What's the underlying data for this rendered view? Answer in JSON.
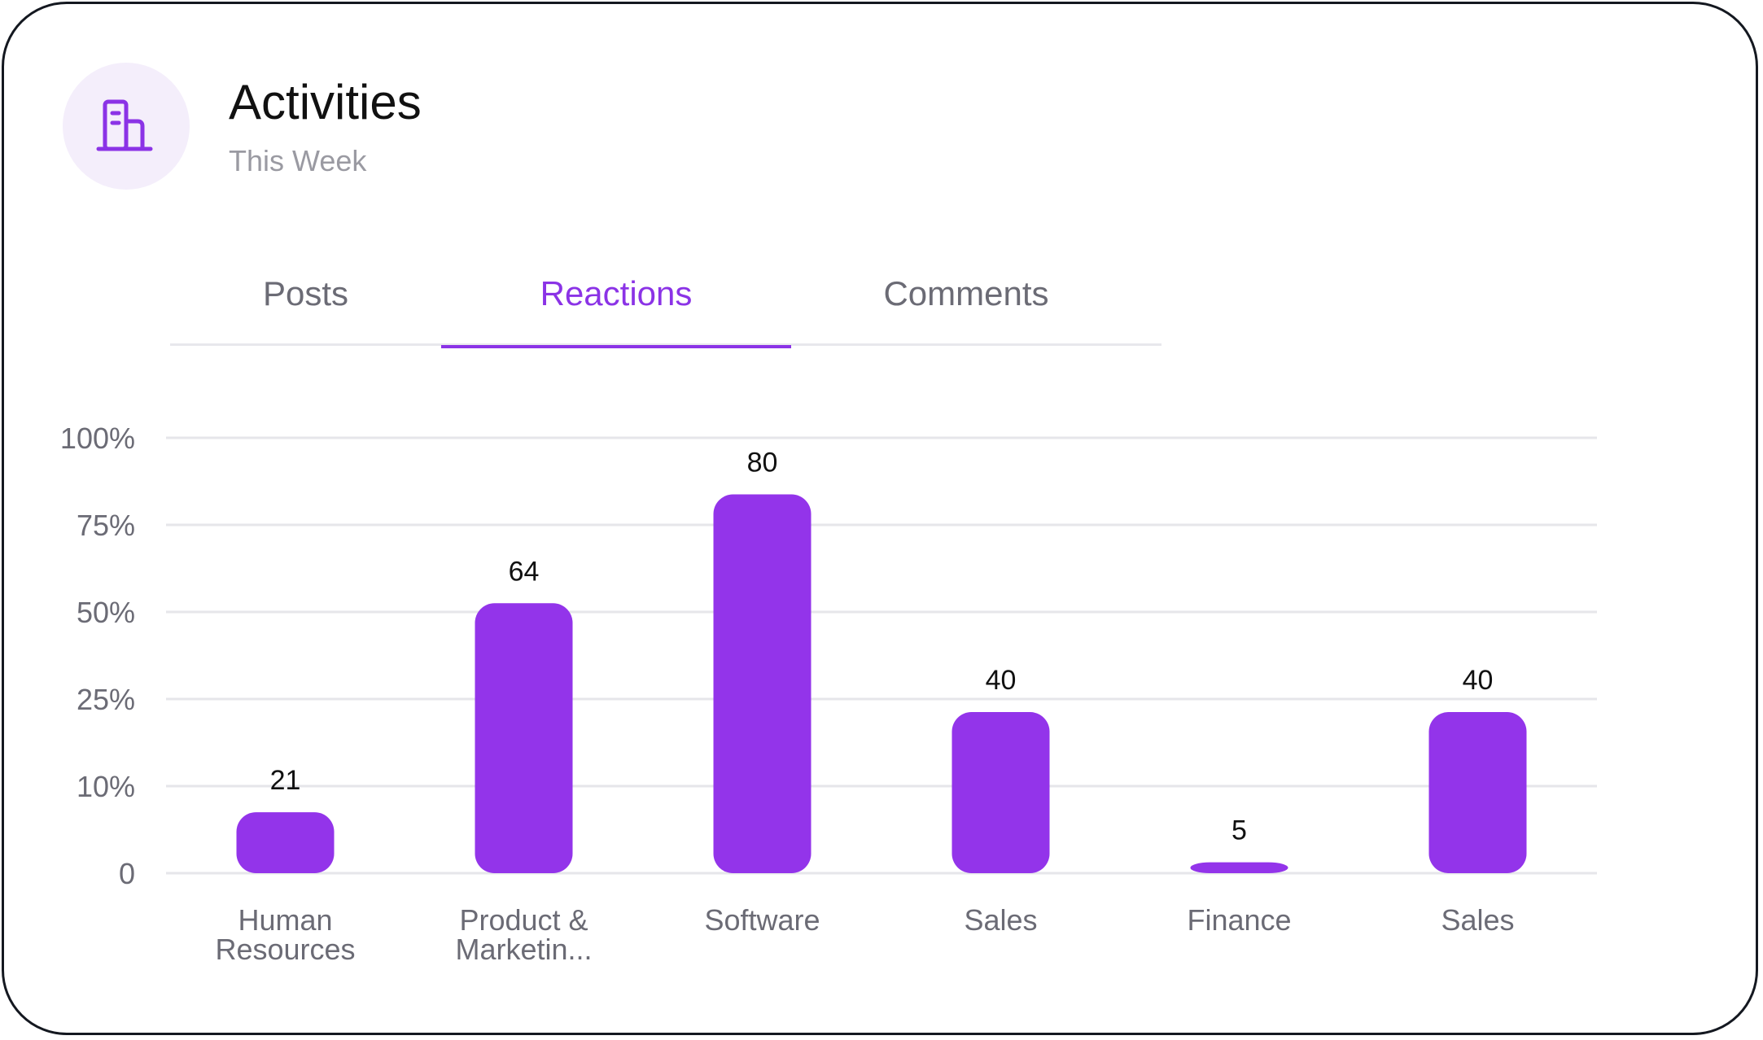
{
  "header": {
    "title": "Activities",
    "subtitle": "This Week",
    "icon": "building-icon"
  },
  "tabs": [
    {
      "label": "Posts",
      "active": false
    },
    {
      "label": "Reactions",
      "active": true
    },
    {
      "label": "Comments",
      "active": false
    }
  ],
  "colors": {
    "accent": "#8b33e6",
    "bar": "#9334ea",
    "grid": "#e6e6ea",
    "axis_text": "#6b6b75"
  },
  "chart_data": {
    "type": "bar",
    "title": "",
    "xlabel": "",
    "ylabel": "",
    "y_ticks": [
      "0",
      "10%",
      "25%",
      "50%",
      "75%",
      "100%"
    ],
    "grid": true,
    "series": [
      {
        "name": "Reactions",
        "values": [
          21,
          64,
          80,
          40,
          5,
          40
        ],
        "level_percent": [
          14,
          62,
          87,
          37,
          2.5,
          37
        ]
      }
    ],
    "categories": [
      [
        "Human",
        "Resources"
      ],
      [
        "Product &",
        "Marketin..."
      ],
      [
        "Software"
      ],
      [
        "Sales"
      ],
      [
        "Finance"
      ],
      [
        "Sales"
      ]
    ]
  }
}
